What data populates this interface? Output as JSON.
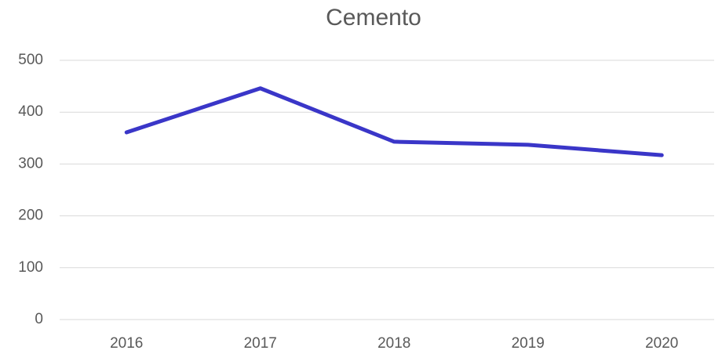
{
  "chart_data": {
    "type": "line",
    "title": "Cemento",
    "categories": [
      "2016",
      "2017",
      "2018",
      "2019",
      "2020"
    ],
    "series": [
      {
        "name": "Cemento",
        "color": "#3a36c8",
        "values": [
          361,
          446,
          343,
          337,
          317
        ]
      }
    ],
    "ylim": [
      0,
      500
    ],
    "yticks": [
      0,
      100,
      200,
      300,
      400,
      500
    ],
    "grid": true
  }
}
